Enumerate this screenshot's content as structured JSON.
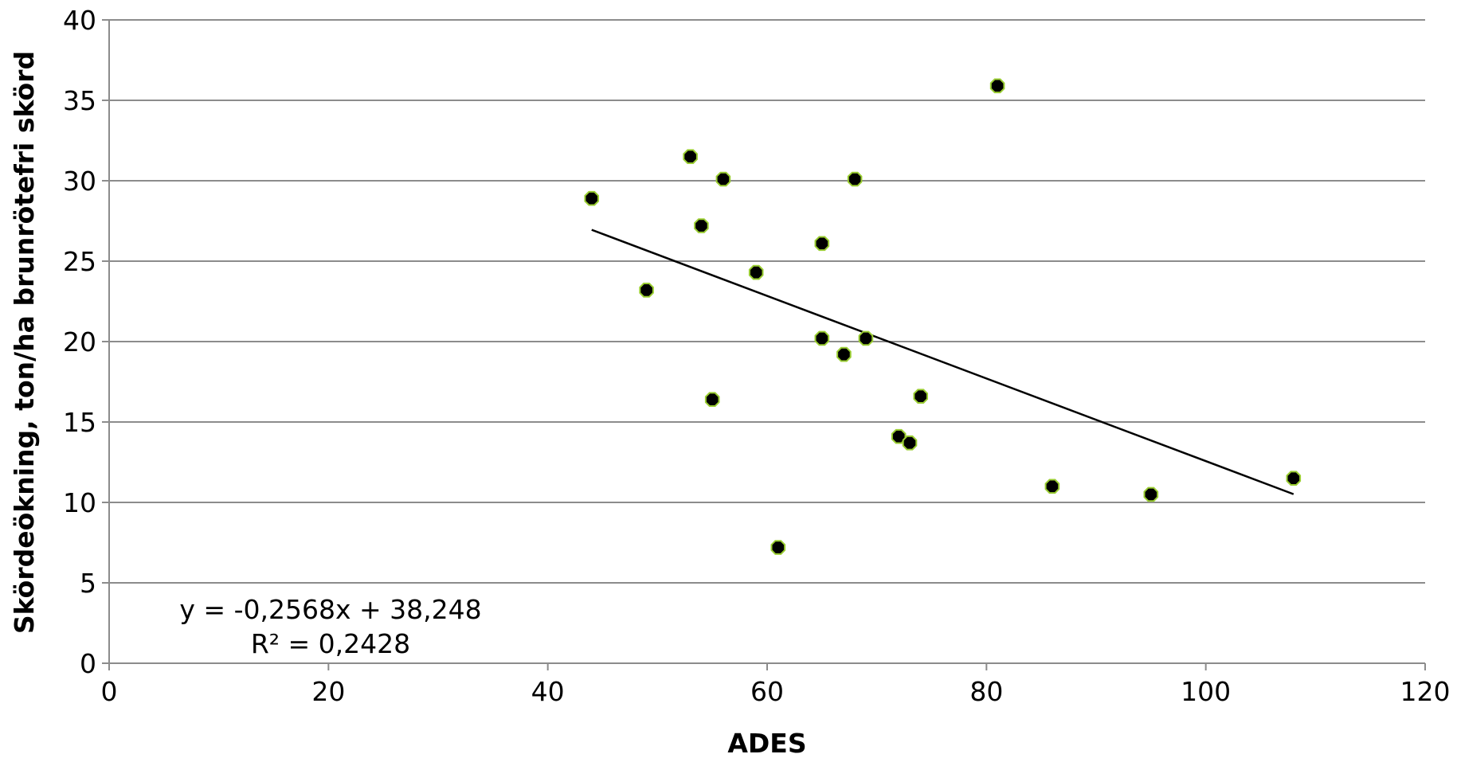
{
  "chart_data": {
    "type": "scatter",
    "xlabel": "ADES",
    "ylabel": "Skördeökning,  ton/ha brunrötefri skörd",
    "xlim": [
      0,
      120
    ],
    "ylim": [
      0,
      40
    ],
    "x_ticks": [
      0,
      20,
      40,
      60,
      80,
      100,
      120
    ],
    "y_ticks": [
      0,
      5,
      10,
      15,
      20,
      25,
      30,
      35,
      40
    ],
    "x_tick_labels": [
      "0",
      "20",
      "40",
      "60",
      "80",
      "100",
      "120"
    ],
    "y_tick_labels": [
      "0",
      "5",
      "10",
      "15",
      "20",
      "25",
      "30",
      "35",
      "40"
    ],
    "grid": "horizontal",
    "series": [
      {
        "marker_color": "#000000",
        "marker_edge_color": "#9acd32",
        "points": [
          {
            "x": 44,
            "y": 28.9
          },
          {
            "x": 49,
            "y": 23.2
          },
          {
            "x": 53,
            "y": 31.5
          },
          {
            "x": 54,
            "y": 27.2
          },
          {
            "x": 55,
            "y": 16.4
          },
          {
            "x": 56,
            "y": 30.1
          },
          {
            "x": 59,
            "y": 24.3
          },
          {
            "x": 61,
            "y": 7.2
          },
          {
            "x": 65,
            "y": 26.1
          },
          {
            "x": 65,
            "y": 20.2
          },
          {
            "x": 67,
            "y": 19.2
          },
          {
            "x": 68,
            "y": 30.1
          },
          {
            "x": 69,
            "y": 20.2
          },
          {
            "x": 72,
            "y": 14.1
          },
          {
            "x": 73,
            "y": 13.7
          },
          {
            "x": 74,
            "y": 16.6
          },
          {
            "x": 81,
            "y": 35.9
          },
          {
            "x": 86,
            "y": 11.0
          },
          {
            "x": 95,
            "y": 10.5
          },
          {
            "x": 108,
            "y": 11.5
          }
        ]
      }
    ],
    "trendline": {
      "type": "linear",
      "slope": -0.2568,
      "intercept": 38.248,
      "x_range": [
        44,
        108
      ],
      "color": "#000000"
    },
    "annotations": {
      "equation": "y = -0,2568x + 38,248",
      "r_squared": "R² = 0,2428"
    }
  }
}
